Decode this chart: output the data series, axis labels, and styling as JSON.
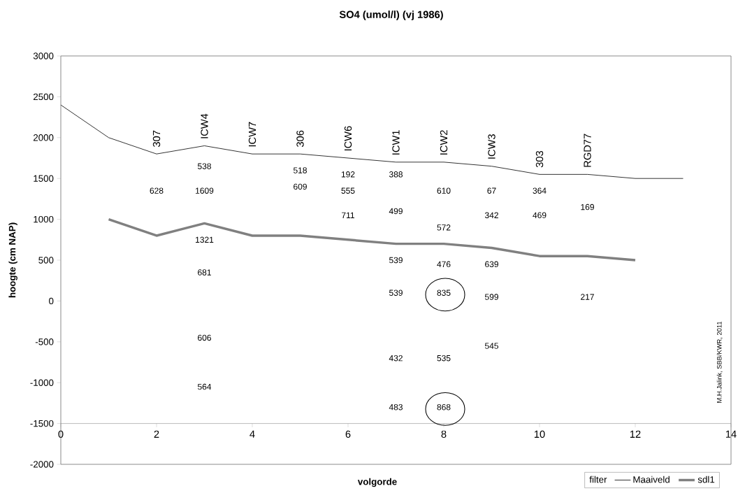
{
  "chart_data": {
    "type": "line",
    "title": "SO4 (umol/l) (vj 1986)",
    "xlabel": "volgorde",
    "ylabel": "hoogte (cm NAP)",
    "xlim": [
      0,
      14
    ],
    "xticks": [
      0,
      2,
      4,
      6,
      8,
      10,
      12,
      14
    ],
    "ylim": [
      -2000,
      3000
    ],
    "yticks": [
      -2000,
      -1500,
      -1000,
      -500,
      0,
      500,
      1000,
      1500,
      2000,
      2500,
      3000
    ],
    "marker": "none",
    "legend": "bottom right",
    "legend_title": "filter",
    "annotations": [
      {
        "text": "307",
        "x": 2,
        "y": 1800
      },
      {
        "text": "ICW4",
        "x": 3,
        "y": 1900
      },
      {
        "text": "ICW7",
        "x": 4,
        "y": 1800
      },
      {
        "text": "306",
        "x": 5,
        "y": 1800
      },
      {
        "text": "ICW6",
        "x": 6,
        "y": 1750
      },
      {
        "text": "ICW1",
        "x": 7,
        "y": 1700
      },
      {
        "text": "ICW2",
        "x": 8,
        "y": 1700
      },
      {
        "text": "ICW3",
        "x": 9,
        "y": 1650
      },
      {
        "text": "303",
        "x": 10,
        "y": 1550
      },
      {
        "text": "RGD77",
        "x": 11,
        "y": 1550
      },
      "628",
      "538",
      "1609",
      "1321",
      "681",
      "606",
      "564",
      "518",
      "609",
      "192",
      "555",
      "711",
      "388",
      "499",
      "539",
      "539",
      "432",
      "483",
      "610",
      "572",
      "476",
      "835",
      "535",
      "868",
      "67",
      "342",
      "639",
      "599",
      "545",
      "364",
      "469",
      "169",
      "217",
      "M.H.Jalink, SBB/KWR, 2011"
    ],
    "series": [
      {
        "name": "Maaiveld",
        "color": "#000000",
        "x": [
          0,
          1,
          2,
          3,
          4,
          5,
          6,
          7,
          8,
          9,
          10,
          11,
          12,
          13
        ],
        "values": [
          2400,
          2000,
          1800,
          1900,
          1800,
          1800,
          1750,
          1700,
          1700,
          1650,
          1550,
          1550,
          1500,
          1500
        ]
      },
      {
        "name": "sdl1",
        "color": "#808080",
        "x": [
          1,
          2,
          3,
          4,
          5,
          6,
          7,
          8,
          9,
          10,
          11,
          12
        ],
        "values": [
          1000,
          800,
          950,
          800,
          800,
          750,
          700,
          700,
          650,
          550,
          550,
          500
        ]
      }
    ]
  }
}
